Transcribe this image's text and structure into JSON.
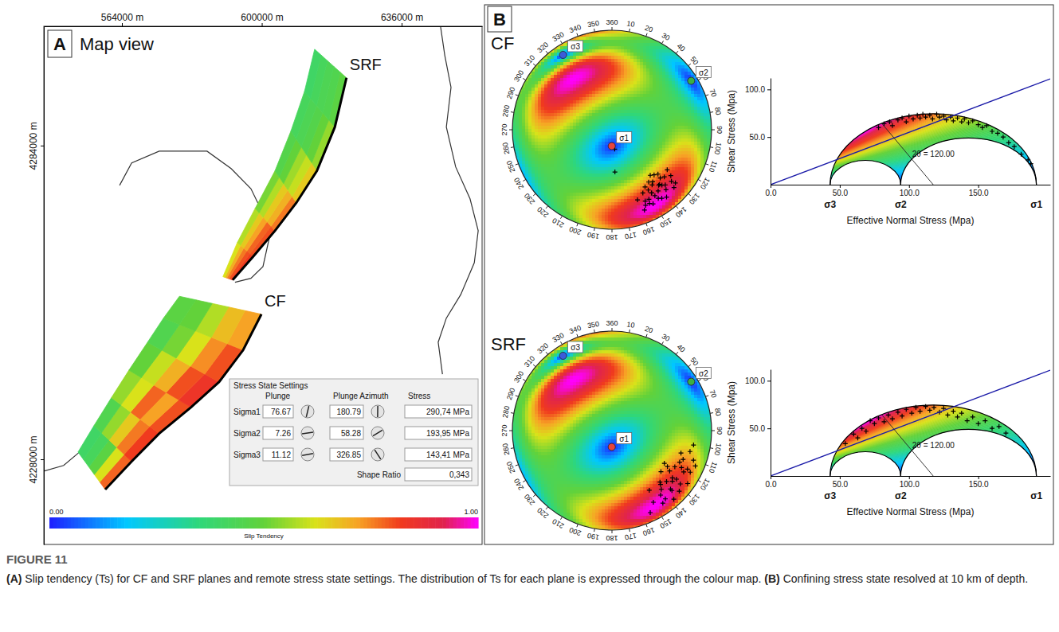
{
  "figure": {
    "label": "FIGURE 11",
    "caption": "(A) Slip tendency (Ts) for CF and SRF planes and remote stress state settings. The distribution of Ts for each plane is expressed through the colour map. (B) Confining stress state resolved at 10 km of depth.",
    "panel_labels": [
      "A",
      "B"
    ]
  },
  "chart_data": [
    {
      "type": "map",
      "title": "Map view",
      "xlim": [
        543900,
        656700
      ],
      "ylim": [
        4212800,
        4305300
      ],
      "xticks": [
        {
          "value": 564000,
          "label": "564000 m"
        },
        {
          "value": 600000,
          "label": "600000 m"
        },
        {
          "value": 636000,
          "label": "636000 m"
        }
      ],
      "yticks": [
        {
          "value": 4228000,
          "label": "4228000 m"
        },
        {
          "value": 4284000,
          "label": "4284000 m"
        }
      ],
      "coastline": [
        {
          "x": [
            563400,
            566500,
            573600,
            585900,
            592100,
            597200,
            600300,
            601900,
            600300,
            597200,
            593100
          ],
          "y": [
            4276900,
            4280900,
            4283000,
            4283000,
            4279900,
            4276300,
            4271900,
            4267400,
            4262400,
            4260300,
            4259600
          ]
        },
        {
          "x": [
            543900,
            549000,
            553100
          ],
          "y": [
            4225900,
            4226900,
            4229300
          ]
        },
        {
          "x": [
            646000,
            647100,
            648700,
            647500,
            649900,
            653600,
            655700,
            654700,
            651200,
            647500,
            645400,
            646500
          ],
          "y": [
            4305300,
            4300100,
            4294400,
            4287300,
            4280200,
            4274500,
            4268800,
            4263100,
            4257400,
            4253200,
            4248900,
            4243200
          ]
        }
      ],
      "faults": [
        {
          "name": "SRF",
          "trace": {
            "x": [
              592500,
              597800,
              603400,
              608900,
              614200,
              618800,
              621800
            ],
            "y": [
              4260000,
              4264200,
              4268800,
              4273800,
              4279500,
              4287300,
              4296100
            ]
          },
          "upper_edge": {
            "x": [
              590000,
              593700,
              598300,
              603400,
              607500,
              611000,
              613600
            ],
            "y": [
              4260600,
              4266700,
              4272800,
              4279500,
              4286600,
              4293700,
              4301200
            ]
          },
          "slip_tendency": [
            [
              0.82,
              0.8,
              0.76,
              0.66,
              0.55,
              0.48
            ],
            [
              0.8,
              0.78,
              0.7,
              0.6,
              0.5,
              0.45
            ],
            [
              0.76,
              0.72,
              0.66,
              0.56,
              0.46,
              0.44
            ],
            [
              0.7,
              0.66,
              0.58,
              0.5,
              0.44,
              0.42
            ],
            [
              0.62,
              0.58,
              0.52,
              0.46,
              0.42,
              0.4
            ]
          ]
        },
        {
          "name": "CF",
          "trace": {
            "x": [
              559700,
              566500,
              573600,
              581800,
              589000,
              595200,
              599900
            ],
            "y": [
              4222600,
              4227600,
              4232600,
              4237300,
              4241800,
              4247500,
              4253900
            ]
          },
          "upper_edge": {
            "x": [
              552700,
              556800,
              561300,
              565800,
              570600,
              574700,
              578800
            ],
            "y": [
              4229300,
              4234000,
              4239000,
              4243900,
              4248900,
              4253200,
              4257100
            ]
          },
          "slip_tendency": [
            [
              0.78,
              0.82,
              0.8,
              0.84,
              0.8,
              0.72
            ],
            [
              0.62,
              0.76,
              0.72,
              0.8,
              0.74,
              0.68
            ],
            [
              0.48,
              0.66,
              0.78,
              0.7,
              0.62,
              0.58
            ],
            [
              0.42,
              0.55,
              0.62,
              0.6,
              0.52,
              0.5
            ],
            [
              0.4,
              0.45,
              0.55,
              0.5,
              0.45,
              0.48
            ]
          ]
        }
      ],
      "colorbar": {
        "label": "Slip Tendency",
        "range": [
          0,
          1
        ],
        "ticks": [
          {
            "value": 0,
            "label": "0.00"
          },
          {
            "value": 1,
            "label": "1.00"
          }
        ]
      },
      "stress_state_settings": {
        "title": "Stress State Settings",
        "columns": [
          "Plunge",
          "Plunge Azimuth",
          "Stress"
        ],
        "rows": [
          {
            "name": "Sigma1",
            "plunge": 76.67,
            "plunge_azimuth": 180.79,
            "stress": {
              "value": 290.74,
              "label": "290,74 MPa"
            }
          },
          {
            "name": "Sigma2",
            "plunge": 7.26,
            "plunge_azimuth": 58.28,
            "stress": {
              "value": 193.95,
              "label": "193,95 MPa"
            }
          },
          {
            "name": "Sigma3",
            "plunge": 11.12,
            "plunge_azimuth": 326.85,
            "stress": {
              "value": 143.41,
              "label": "143,41 MPa"
            }
          }
        ],
        "shape_ratio": {
          "label": "Shape Ratio",
          "value": 0.343,
          "value_label": "0,343"
        }
      }
    },
    {
      "type": "stereonet",
      "title": "CF",
      "azimuth_ticks": [
        {
          "value": 0,
          "label": "360"
        },
        10,
        20,
        30,
        40,
        50,
        60,
        70,
        80,
        90,
        100,
        110,
        120,
        130,
        140,
        150,
        160,
        170,
        180,
        190,
        200,
        210,
        220,
        230,
        240,
        250,
        260,
        270,
        280,
        290,
        300,
        310,
        320,
        330,
        340,
        350
      ],
      "stress_axis_labels": [
        "σ1",
        "σ2",
        "σ3"
      ],
      "poles": {
        "trend": [
          128,
          132,
          136,
          140,
          144,
          148,
          152,
          156,
          130,
          134,
          138,
          142,
          146,
          150,
          154,
          158,
          126,
          131,
          137,
          143,
          149,
          155,
          160,
          133,
          139,
          145,
          151,
          135,
          141,
          147,
          153,
          140,
          144,
          148,
          138,
          172,
          176
        ],
        "plunge": [
          26,
          30,
          24,
          28,
          32,
          26,
          22,
          18,
          18,
          36,
          20,
          34,
          18,
          34,
          30,
          14,
          32,
          22,
          38,
          24,
          30,
          22,
          26,
          16,
          28,
          36,
          16,
          32,
          14,
          22,
          18,
          40,
          16,
          26,
          26,
          74,
          55
        ]
      }
    },
    {
      "type": "stereonet",
      "title": "SRF",
      "azimuth_ticks": [
        {
          "value": 0,
          "label": "360"
        },
        10,
        20,
        30,
        40,
        50,
        60,
        70,
        80,
        90,
        100,
        110,
        120,
        130,
        140,
        150,
        160,
        170,
        180,
        190,
        200,
        210,
        220,
        230,
        240,
        250,
        260,
        270,
        280,
        290,
        300,
        310,
        320,
        330,
        340,
        350
      ],
      "stress_axis_labels": [
        "σ1",
        "σ2",
        "σ3"
      ],
      "poles": {
        "trend": [
          105,
          110,
          115,
          120,
          125,
          130,
          135,
          140,
          145,
          150,
          108,
          113,
          118,
          123,
          128,
          133,
          138,
          143,
          148,
          112,
          117,
          122,
          127,
          132,
          137,
          142,
          120,
          125,
          130,
          135,
          118,
          128,
          138,
          100,
          155
        ],
        "plunge": [
          20,
          14,
          26,
          18,
          30,
          22,
          16,
          24,
          12,
          18,
          28,
          10,
          22,
          34,
          14,
          26,
          8,
          20,
          30,
          24,
          16,
          38,
          20,
          10,
          30,
          14,
          28,
          8,
          36,
          18,
          12,
          24,
          28,
          18,
          10
        ]
      }
    },
    {
      "type": "mohr",
      "xlabel": "Effective Normal Stress (Mpa)",
      "ylabel": "Shear Stress (Mpa)",
      "xlim": [
        0,
        202
      ],
      "ylim": [
        0,
        112
      ],
      "xticks": [
        {
          "value": 0,
          "label": "0.0"
        },
        {
          "value": 50,
          "label": "50.0"
        },
        {
          "value": 100,
          "label": "100.0"
        },
        {
          "value": 150,
          "label": "150.0"
        }
      ],
      "yticks": [
        {
          "value": 50,
          "label": "50.0"
        },
        {
          "value": 100,
          "label": "100.0"
        }
      ],
      "principal_stresses": [
        {
          "label": "σ1",
          "value": 192
        },
        {
          "label": "σ2",
          "value": 94
        },
        {
          "label": "σ3",
          "value": 43
        }
      ],
      "friction_coefficient": 0.55,
      "annotation": {
        "text": "2θ = 120.00",
        "two_theta": 120
      },
      "points": {
        "x": [
          78,
          82,
          86,
          88,
          92,
          95,
          98,
          100,
          103,
          106,
          108,
          110,
          112,
          115,
          117,
          120,
          122,
          125,
          127,
          130,
          132,
          135,
          138,
          140,
          143,
          146,
          150,
          153,
          156,
          160,
          164,
          168,
          172,
          176,
          181,
          186,
          188
        ],
        "y": [
          60,
          64,
          66,
          62,
          68,
          70,
          66,
          72,
          69,
          73,
          70,
          74,
          71,
          73,
          69,
          74,
          71,
          72,
          68,
          71,
          67,
          70,
          66,
          69,
          65,
          67,
          63,
          60,
          62,
          56,
          54,
          50,
          44,
          40,
          32,
          26,
          22
        ]
      }
    },
    {
      "type": "mohr",
      "xlabel": "Effective Normal Stress (Mpa)",
      "ylabel": "Shear Stress (Mpa)",
      "xlim": [
        0,
        202
      ],
      "ylim": [
        0,
        112
      ],
      "xticks": [
        {
          "value": 0,
          "label": "0.0"
        },
        {
          "value": 50,
          "label": "50.0"
        },
        {
          "value": 100,
          "label": "100.0"
        },
        {
          "value": 150,
          "label": "150.0"
        }
      ],
      "yticks": [
        {
          "value": 50,
          "label": "50.0"
        },
        {
          "value": 100,
          "label": "100.0"
        }
      ],
      "principal_stresses": [
        {
          "label": "σ1",
          "value": 192
        },
        {
          "label": "σ2",
          "value": 94
        },
        {
          "label": "σ3",
          "value": 43
        }
      ],
      "friction_coefficient": 0.55,
      "annotation": {
        "text": "2θ = 120.00",
        "two_theta": 120
      },
      "points": {
        "x": [
          54,
          60,
          63,
          66,
          69,
          72,
          75,
          78,
          82,
          85,
          88,
          92,
          95,
          98,
          102,
          105,
          108,
          112,
          115,
          118,
          122,
          125,
          128,
          132,
          135,
          138,
          142,
          146,
          150,
          155,
          160,
          165,
          170
        ],
        "y": [
          34,
          44,
          40,
          50,
          47,
          58,
          55,
          61,
          57,
          64,
          60,
          67,
          63,
          70,
          66,
          72,
          68,
          73,
          69,
          72,
          67,
          71,
          64,
          68,
          62,
          66,
          58,
          62,
          55,
          58,
          50,
          52,
          45
        ]
      }
    }
  ]
}
